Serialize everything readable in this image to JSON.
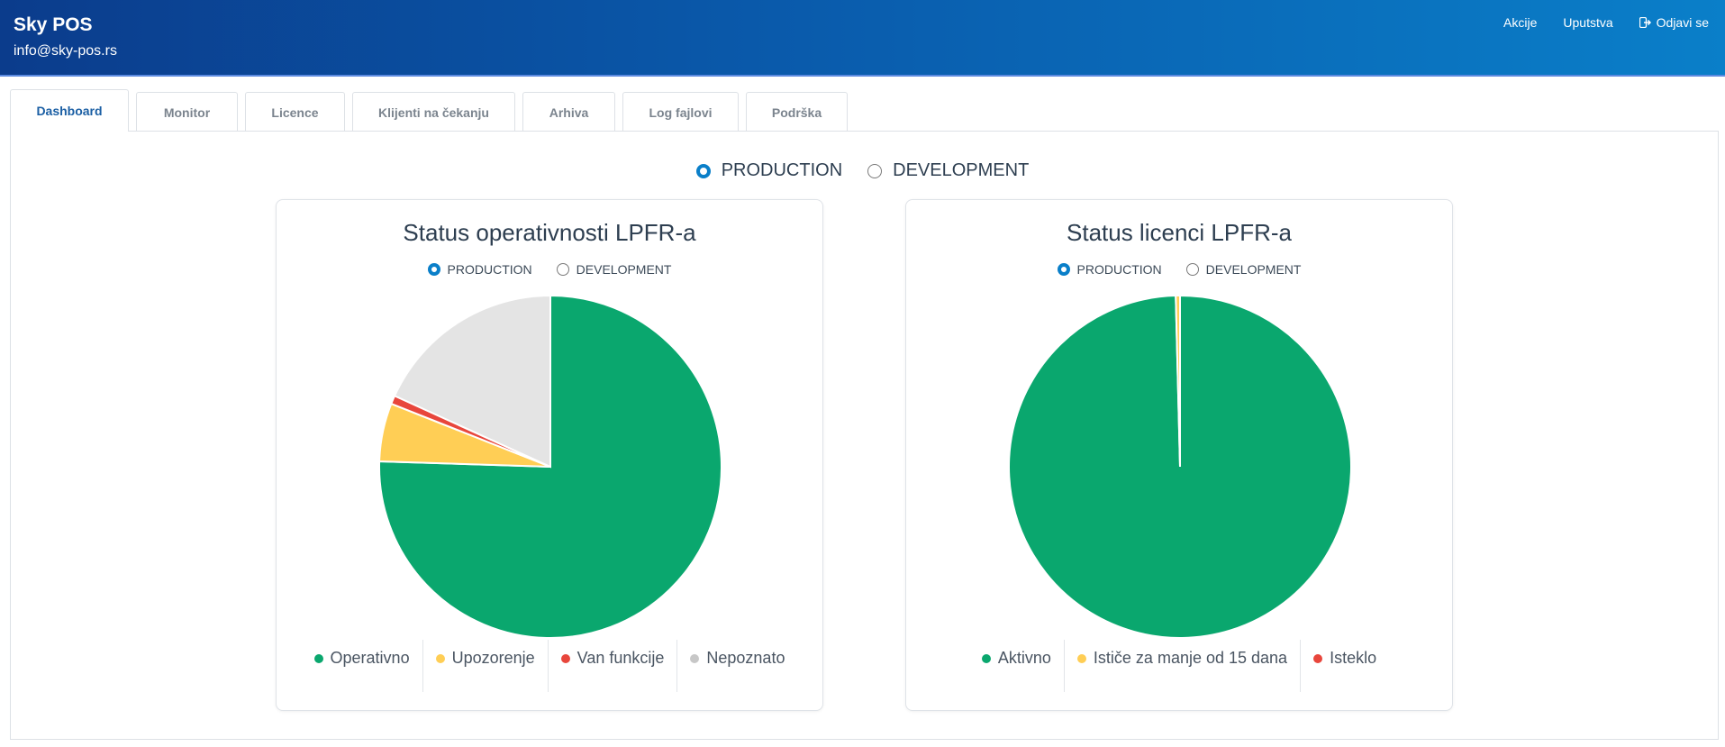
{
  "header": {
    "brand": "Sky POS",
    "email": "info@sky-pos.rs",
    "nav": {
      "akcije": "Akcije",
      "uputstva": "Uputstva",
      "odjava": "Odjavi se"
    }
  },
  "tabs": [
    "Dashboard",
    "Monitor",
    "Licence",
    "Klijenti na čekanju",
    "Arhiva",
    "Log fajlovi",
    "Podrška"
  ],
  "environment": {
    "production": "PRODUCTION",
    "development": "DEVELOPMENT",
    "selected": "PRODUCTION"
  },
  "colors": {
    "green": "#0aa76e",
    "yellow": "#ffce55",
    "red": "#e8463c",
    "gray": "#e4e4e4",
    "accent": "#0a7fc9"
  },
  "charts": {
    "operativnost": {
      "title": "Status operativnosti LPFR-a",
      "radio_production": "PRODUCTION",
      "radio_development": "DEVELOPMENT",
      "legend": [
        "Operativno",
        "Upozorenje",
        "Van funkcije",
        "Nepoznato"
      ]
    },
    "licence": {
      "title": "Status licenci LPFR-a",
      "radio_production": "PRODUCTION",
      "radio_development": "DEVELOPMENT",
      "legend": [
        "Aktivno",
        "Ističe za manje od 15 dana",
        "Isteklo"
      ]
    }
  },
  "chart_data": [
    {
      "type": "pie",
      "title": "Status operativnosti LPFR-a",
      "categories": [
        "Operativno",
        "Upozorenje",
        "Van funkcije",
        "Nepoznato"
      ],
      "values": [
        75.5,
        5.5,
        0.8,
        18.2
      ],
      "colors": [
        "#0aa76e",
        "#ffce55",
        "#e8463c",
        "#e4e4e4"
      ],
      "legend": "bottom"
    },
    {
      "type": "pie",
      "title": "Status licenci LPFR-a",
      "categories": [
        "Aktivno",
        "Ističe za manje od 15 dana",
        "Isteklo"
      ],
      "values": [
        99.6,
        0.4,
        0.0
      ],
      "colors": [
        "#0aa76e",
        "#ffce55",
        "#e8463c"
      ],
      "legend": "bottom"
    }
  ]
}
